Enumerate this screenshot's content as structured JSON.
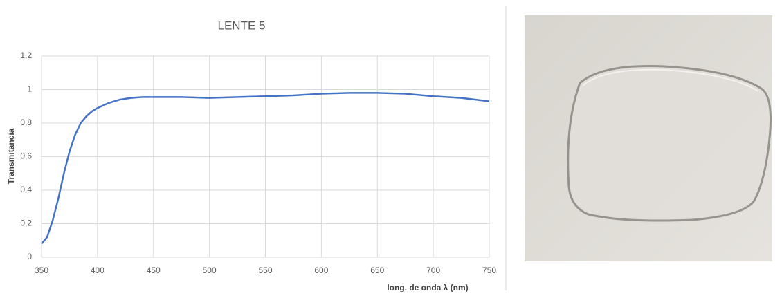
{
  "chart_data": {
    "type": "line",
    "title": "LENTE 5",
    "x_label": "long. de onda λ (nm)",
    "y_label": "Transmitancia",
    "x": [
      350,
      355,
      360,
      365,
      370,
      375,
      380,
      385,
      390,
      395,
      400,
      410,
      420,
      430,
      440,
      450,
      475,
      500,
      525,
      550,
      575,
      600,
      625,
      650,
      675,
      700,
      725,
      750
    ],
    "series": [
      {
        "color": "#4472c4",
        "values": [
          0.08,
          0.12,
          0.22,
          0.35,
          0.5,
          0.63,
          0.73,
          0.8,
          0.84,
          0.87,
          0.89,
          0.92,
          0.94,
          0.95,
          0.955,
          0.955,
          0.955,
          0.95,
          0.955,
          0.96,
          0.965,
          0.975,
          0.98,
          0.98,
          0.975,
          0.96,
          0.95,
          0.93
        ]
      }
    ],
    "xlim": [
      350,
      750
    ],
    "xticks": [
      350,
      400,
      450,
      500,
      550,
      600,
      650,
      700,
      750
    ],
    "ylim": [
      0,
      1.2
    ],
    "yticks": [
      0,
      {
        "value": 0.2,
        "label": "0,2"
      },
      {
        "value": 0.4,
        "label": "0,4"
      },
      {
        "value": 0.6,
        "label": "0,6"
      },
      {
        "value": 0.8,
        "label": "0,8"
      },
      1,
      {
        "value": 1.2,
        "label": "1,2"
      }
    ],
    "grid": true
  }
}
